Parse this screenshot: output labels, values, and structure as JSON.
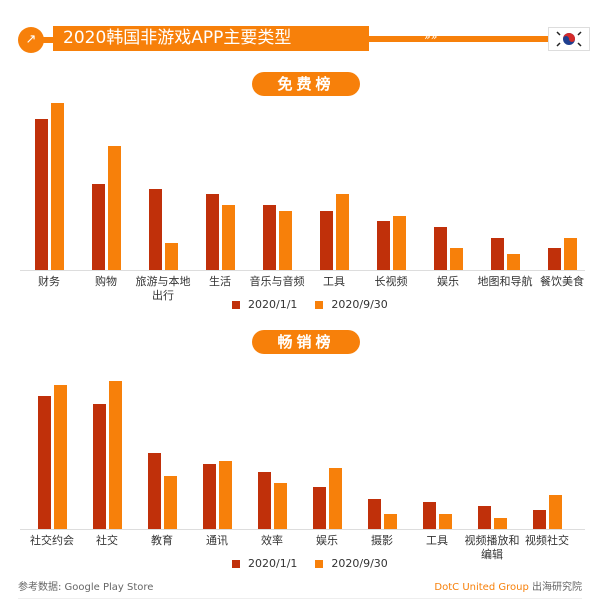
{
  "title": "2020韩国非游戏APP主要类型",
  "icons": {
    "title": "external-link-icon",
    "flag": "south-korea-flag-icon"
  },
  "colors": {
    "series1": "#c0300a",
    "series2": "#f7800a",
    "accent": "#f7800a"
  },
  "chart_data": [
    {
      "type": "bar",
      "title": "免费榜",
      "categories": [
        "财务",
        "购物",
        "旅游与本地出行",
        "生活",
        "音乐与音频",
        "工具",
        "长视频",
        "娱乐",
        "地图和导航",
        "餐饮美食"
      ],
      "series": [
        {
          "name": "2020/1/1",
          "values": [
            28,
            16,
            15,
            14,
            12,
            11,
            9,
            8,
            6,
            4
          ]
        },
        {
          "name": "2020/9/30",
          "values": [
            31,
            23,
            5,
            12,
            11,
            14,
            10,
            4,
            3,
            6
          ]
        }
      ],
      "legend": "bottom",
      "grid": false
    },
    {
      "type": "bar",
      "title": "畅销榜",
      "categories": [
        "社交约会",
        "社交",
        "教育",
        "通讯",
        "效率",
        "娱乐",
        "摄影",
        "工具",
        "视频播放和编辑",
        "视频社交"
      ],
      "series": [
        {
          "name": "2020/1/1",
          "values": [
            35,
            33,
            20,
            17,
            15,
            11,
            8,
            7,
            6,
            5
          ]
        },
        {
          "name": "2020/9/30",
          "values": [
            38,
            39,
            14,
            18,
            12,
            16,
            4,
            4,
            3,
            9
          ]
        }
      ],
      "legend": "bottom",
      "grid": false
    }
  ],
  "footer": {
    "source": "参考数据: Google Play Store",
    "brand": "DotC United Group",
    "org": "出海研究院"
  }
}
